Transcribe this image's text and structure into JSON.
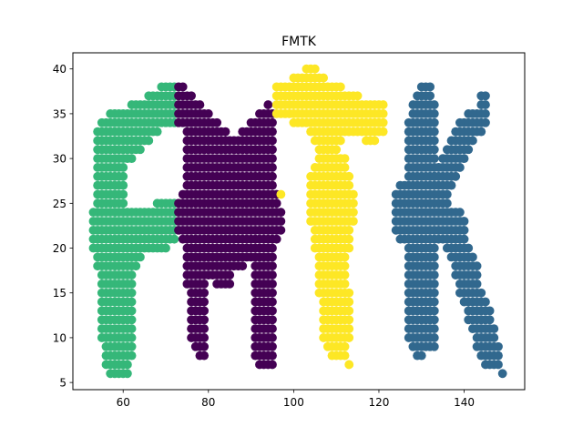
{
  "chart_data": {
    "type": "scatter",
    "title": "FMTK",
    "xlabel": "",
    "ylabel": "",
    "xlim": [
      48.2,
      154.2
    ],
    "ylim": [
      4.2,
      41.8
    ],
    "xticks": [
      60,
      80,
      100,
      120,
      140
    ],
    "yticks": [
      5,
      10,
      15,
      20,
      25,
      30,
      35,
      40
    ],
    "grid": false,
    "legend": "none",
    "series": [
      {
        "color": "#35b779",
        "runs": [
          [
            38,
            69,
            72
          ],
          [
            37,
            66,
            72
          ],
          [
            36,
            62,
            72
          ],
          [
            35,
            57,
            72
          ],
          [
            34,
            55,
            72
          ],
          [
            33,
            54,
            68
          ],
          [
            32,
            54,
            66
          ],
          [
            31,
            54,
            64
          ],
          [
            30,
            54,
            62
          ],
          [
            29,
            54,
            60
          ],
          [
            28,
            54,
            60
          ],
          [
            27,
            54,
            60
          ],
          [
            26,
            54,
            60
          ],
          [
            25,
            54,
            60
          ],
          [
            25,
            68,
            72
          ],
          [
            24,
            53,
            72
          ],
          [
            23,
            53,
            72
          ],
          [
            22,
            53,
            72
          ],
          [
            21,
            53,
            72
          ],
          [
            20,
            53,
            70
          ],
          [
            19,
            54,
            64
          ],
          [
            18,
            54,
            63
          ],
          [
            17,
            55,
            62
          ],
          [
            16,
            55,
            62
          ],
          [
            15,
            55,
            62
          ],
          [
            14,
            55,
            62
          ],
          [
            13,
            55,
            62
          ],
          [
            12,
            55,
            62
          ],
          [
            11,
            55,
            62
          ],
          [
            10,
            55,
            62
          ],
          [
            9,
            56,
            62
          ],
          [
            8,
            56,
            62
          ],
          [
            7,
            56,
            61
          ],
          [
            6,
            57,
            61
          ]
        ]
      },
      {
        "color": "#440154",
        "runs": [
          [
            38,
            73,
            74
          ],
          [
            37,
            73,
            76
          ],
          [
            36,
            73,
            78
          ],
          [
            36,
            94,
            94
          ],
          [
            35,
            73,
            80
          ],
          [
            35,
            92,
            95
          ],
          [
            34,
            73,
            82
          ],
          [
            34,
            90,
            95
          ],
          [
            33,
            75,
            84
          ],
          [
            33,
            88,
            95
          ],
          [
            32,
            75,
            95
          ],
          [
            31,
            75,
            95
          ],
          [
            30,
            75,
            95
          ],
          [
            29,
            75,
            95
          ],
          [
            28,
            75,
            95
          ],
          [
            27,
            75,
            95
          ],
          [
            26,
            74,
            96
          ],
          [
            25,
            73,
            96
          ],
          [
            24,
            73,
            97
          ],
          [
            23,
            73,
            97
          ],
          [
            22,
            73,
            97
          ],
          [
            21,
            74,
            96
          ],
          [
            20,
            75,
            95
          ],
          [
            19,
            75,
            95
          ],
          [
            18,
            75,
            88
          ],
          [
            18,
            91,
            95
          ],
          [
            17,
            75,
            85
          ],
          [
            17,
            91,
            95
          ],
          [
            16,
            75,
            79
          ],
          [
            16,
            82,
            85
          ],
          [
            16,
            91,
            95
          ],
          [
            15,
            76,
            79
          ],
          [
            15,
            91,
            95
          ],
          [
            14,
            76,
            79
          ],
          [
            14,
            91,
            95
          ],
          [
            13,
            76,
            79
          ],
          [
            13,
            91,
            95
          ],
          [
            12,
            76,
            79
          ],
          [
            12,
            91,
            95
          ],
          [
            11,
            76,
            79
          ],
          [
            11,
            91,
            95
          ],
          [
            10,
            76,
            79
          ],
          [
            10,
            91,
            95
          ],
          [
            9,
            77,
            79
          ],
          [
            9,
            91,
            95
          ],
          [
            8,
            78,
            79
          ],
          [
            8,
            91,
            95
          ],
          [
            7,
            92,
            95
          ]
        ]
      },
      {
        "color": "#fde725",
        "runs": [
          [
            40,
            103,
            105
          ],
          [
            39,
            100,
            107
          ],
          [
            38,
            96,
            111
          ],
          [
            37,
            96,
            115
          ],
          [
            36,
            96,
            121
          ],
          [
            35,
            96,
            121
          ],
          [
            34,
            100,
            121
          ],
          [
            33,
            104,
            121
          ],
          [
            32,
            105,
            111
          ],
          [
            32,
            117,
            119
          ],
          [
            31,
            106,
            110
          ],
          [
            30,
            106,
            112
          ],
          [
            29,
            105,
            112
          ],
          [
            28,
            104,
            113
          ],
          [
            27,
            104,
            113
          ],
          [
            26,
            97,
            97
          ],
          [
            26,
            104,
            114
          ],
          [
            25,
            104,
            114
          ],
          [
            24,
            104,
            114
          ],
          [
            23,
            104,
            114
          ],
          [
            22,
            105,
            113
          ],
          [
            21,
            105,
            113
          ],
          [
            20,
            105,
            113
          ],
          [
            19,
            106,
            112
          ],
          [
            18,
            106,
            112
          ],
          [
            17,
            106,
            112
          ],
          [
            16,
            106,
            112
          ],
          [
            15,
            106,
            113
          ],
          [
            14,
            107,
            113
          ],
          [
            13,
            107,
            113
          ],
          [
            12,
            107,
            113
          ],
          [
            11,
            107,
            113
          ],
          [
            10,
            107,
            113
          ],
          [
            9,
            108,
            112
          ],
          [
            8,
            109,
            112
          ],
          [
            7,
            113,
            113
          ]
        ]
      },
      {
        "color": "#31688e",
        "runs": [
          [
            38,
            130,
            132
          ],
          [
            37,
            129,
            132
          ],
          [
            37,
            144,
            145
          ],
          [
            36,
            128,
            133
          ],
          [
            36,
            144,
            145
          ],
          [
            35,
            128,
            133
          ],
          [
            35,
            141,
            145
          ],
          [
            34,
            127,
            133
          ],
          [
            34,
            139,
            145
          ],
          [
            33,
            127,
            133
          ],
          [
            33,
            138,
            144
          ],
          [
            32,
            127,
            133
          ],
          [
            32,
            137,
            142
          ],
          [
            31,
            127,
            133
          ],
          [
            31,
            136,
            141
          ],
          [
            30,
            127,
            133
          ],
          [
            30,
            135,
            140
          ],
          [
            29,
            127,
            133
          ],
          [
            29,
            134,
            139
          ],
          [
            28,
            127,
            133
          ],
          [
            28,
            133,
            138
          ],
          [
            27,
            125,
            137
          ],
          [
            26,
            124,
            136
          ],
          [
            25,
            124,
            136
          ],
          [
            24,
            124,
            139
          ],
          [
            23,
            124,
            140
          ],
          [
            22,
            124,
            140
          ],
          [
            21,
            125,
            140
          ],
          [
            20,
            127,
            133
          ],
          [
            20,
            136,
            141
          ],
          [
            19,
            127,
            133
          ],
          [
            19,
            137,
            142
          ],
          [
            18,
            127,
            133
          ],
          [
            18,
            138,
            143
          ],
          [
            17,
            127,
            133
          ],
          [
            17,
            138,
            143
          ],
          [
            16,
            127,
            133
          ],
          [
            16,
            139,
            143
          ],
          [
            15,
            127,
            133
          ],
          [
            15,
            139,
            144
          ],
          [
            14,
            127,
            133
          ],
          [
            14,
            140,
            145
          ],
          [
            13,
            127,
            133
          ],
          [
            13,
            141,
            146
          ],
          [
            12,
            127,
            133
          ],
          [
            12,
            141,
            146
          ],
          [
            11,
            127,
            133
          ],
          [
            11,
            142,
            147
          ],
          [
            10,
            127,
            133
          ],
          [
            10,
            143,
            147
          ],
          [
            9,
            128,
            133
          ],
          [
            9,
            143,
            148
          ],
          [
            8,
            129,
            130
          ],
          [
            8,
            144,
            148
          ],
          [
            7,
            145,
            148
          ],
          [
            6,
            149,
            149
          ]
        ]
      }
    ]
  }
}
